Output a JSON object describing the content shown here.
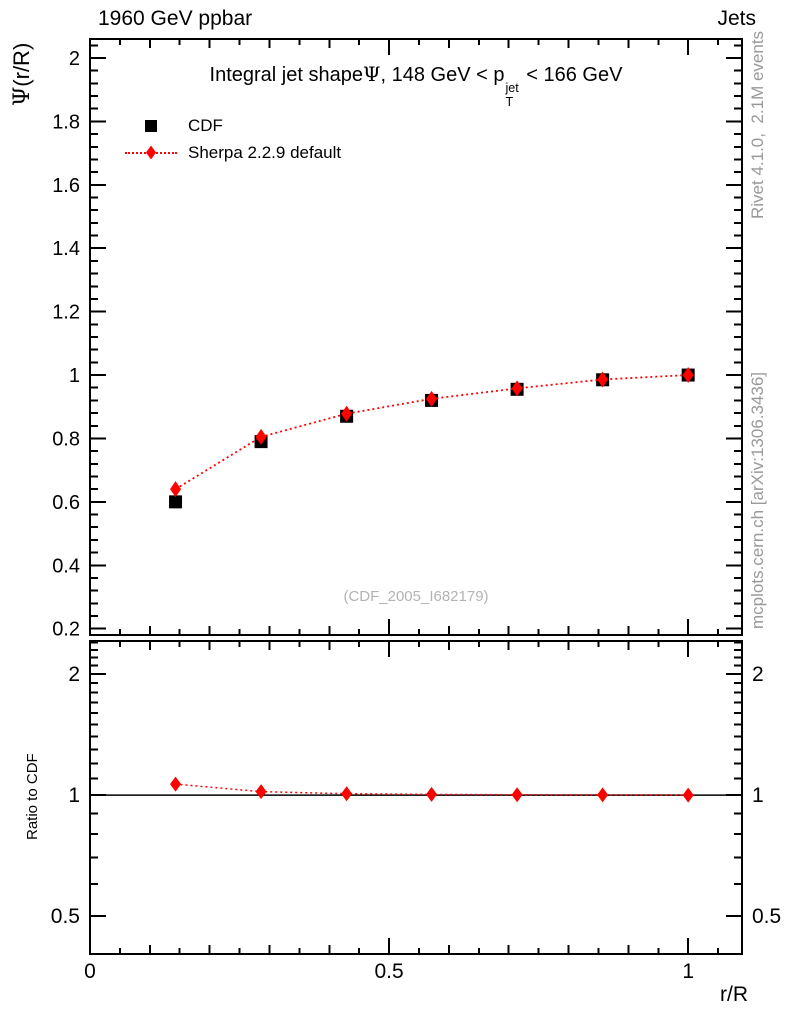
{
  "header": {
    "left": "1960 GeV ppbar",
    "right": "Jets"
  },
  "title": {
    "before_psi": "Integral jet shape",
    "psi": "Ψ",
    "mid": ", 148 GeV < p",
    "sup": "jet",
    "sub": "T",
    "after": " < 166 GeV"
  },
  "main_panel": {
    "ylabel_psi": "Ψ",
    "ylabel_rest": "(r/R)",
    "watermark": "(CDF_2005_I682179)"
  },
  "ratio_panel": {
    "ylabel": "Ratio to CDF"
  },
  "x_axis": {
    "label": "r/R"
  },
  "right_margin": {
    "rivet": "Rivet 4.1.0,  2.1M events",
    "mcplots": "mcplots.cern.ch [arXiv:1306.3436]"
  },
  "legend": {
    "items": [
      {
        "label": "CDF",
        "marker": "square",
        "color": "#000000",
        "linestyle": "none"
      },
      {
        "label": "Sherpa 2.2.9 default",
        "marker": "diamond",
        "color": "#ff0000",
        "linestyle": "dotted"
      }
    ]
  },
  "colors": {
    "data": "#000000",
    "mc": "#ff0000",
    "annotation_gray": "#999999",
    "watermark_gray": "#b3b3b3"
  },
  "chart_data": [
    {
      "type": "scatter",
      "title": "Integral jet shape Psi, 148 GeV < pT(jet) < 166 GeV",
      "xlabel": "r/R",
      "ylabel": "Psi(r/R)",
      "xlim": [
        0,
        1.09
      ],
      "ylim": [
        0.18,
        2.06
      ],
      "yscale": "linear",
      "xticks": [
        0,
        0.5,
        1
      ],
      "yticks": [
        0.2,
        0.4,
        0.6,
        0.8,
        1,
        1.2,
        1.4,
        1.6,
        1.8,
        2
      ],
      "grid": false,
      "legend_position": "top-left",
      "x": [
        0.143,
        0.286,
        0.429,
        0.571,
        0.714,
        0.857,
        1.0
      ],
      "series": [
        {
          "name": "CDF",
          "marker": "square",
          "color": "#000000",
          "linestyle": "none",
          "values": [
            0.6,
            0.79,
            0.87,
            0.92,
            0.955,
            0.985,
            1.0
          ]
        },
        {
          "name": "Sherpa 2.2.9 default",
          "marker": "diamond",
          "color": "#ff0000",
          "linestyle": "dotted",
          "values": [
            0.64,
            0.805,
            0.878,
            0.925,
            0.958,
            0.986,
            1.0
          ],
          "yerr": [
            0.02,
            0.012,
            0.008,
            0.006,
            0.005,
            0.004,
            0.003
          ]
        }
      ],
      "watermark": "(CDF_2005_I682179)"
    },
    {
      "type": "line",
      "ylabel": "Ratio to CDF",
      "xlim": [
        0,
        1.09
      ],
      "ylim": [
        0.402,
        2.42
      ],
      "yscale": "log",
      "xticks": [
        0,
        0.5,
        1
      ],
      "yticks": [
        0.5,
        1,
        2
      ],
      "refline_y": 1.0,
      "x": [
        0.143,
        0.286,
        0.429,
        0.571,
        0.714,
        0.857,
        1.0
      ],
      "series": [
        {
          "name": "Sherpa 2.2.9 default / CDF",
          "marker": "diamond",
          "color": "#ff0000",
          "linestyle": "dotted",
          "values": [
            1.065,
            1.02,
            1.008,
            1.004,
            1.002,
            1.001,
            1.0
          ],
          "yerr": [
            0.03,
            0.02,
            0.014,
            0.01,
            0.008,
            0.006,
            0.005
          ]
        }
      ]
    }
  ]
}
